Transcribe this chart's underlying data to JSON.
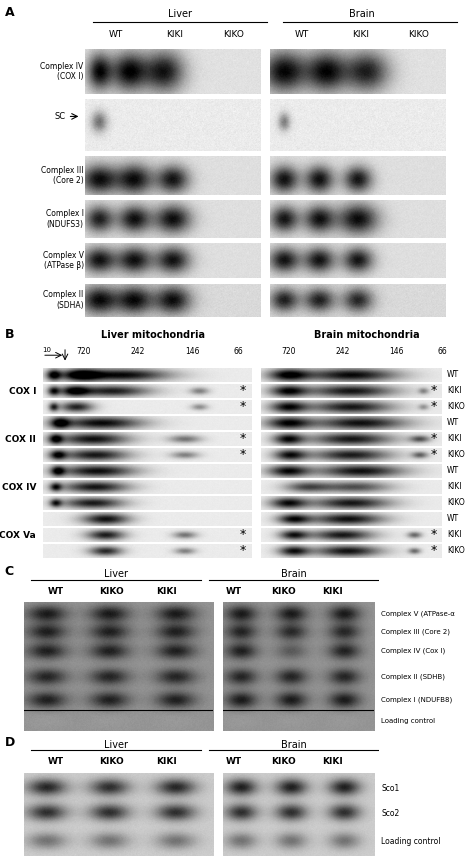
{
  "panel_labels": [
    "A",
    "B",
    "C",
    "D"
  ],
  "A_liver_label": "Liver",
  "A_brain_label": "Brain",
  "A_col_labels": [
    "WT",
    "KIKI",
    "KIKO"
  ],
  "A_row_labels": [
    "Complex IV\n(COX I)",
    "SC",
    "Complex III\n(Core 2)",
    "Complex I\n(NDUFS3)",
    "Complex V\n(ATPase β)",
    "Complex II\n(SDHA)"
  ],
  "B_liver_label": "Liver mitochondria",
  "B_brain_label": "Brain mitochondria",
  "B_mw_labels": [
    "720",
    "242",
    "146",
    "66"
  ],
  "B_protein_labels": [
    "COX I",
    "COX II",
    "COX IV",
    "COX Va"
  ],
  "B_row_labels": [
    "WT",
    "KIKI",
    "KIKO"
  ],
  "C_liver_label": "Liver",
  "C_brain_label": "Brain",
  "C_col_labels": [
    "WT",
    "KIKO",
    "KIKI"
  ],
  "C_band_labels": [
    "Complex V (ATPase-α",
    "Complex III (Core 2)",
    "Complex IV (Cox I)",
    "Complex II (SDHB)",
    "Complex I (NDUFB8)",
    "Loading control"
  ],
  "D_liver_label": "Liver",
  "D_brain_label": "Brain",
  "D_col_labels": [
    "WT",
    "KIKO",
    "KIKI"
  ],
  "D_band_labels": [
    "Sco1",
    "Sco2",
    "Loading control"
  ],
  "white": "#ffffff",
  "near_black": "#111111",
  "light_gray": "#e8e8e8",
  "med_gray": "#c8c8c8",
  "dark_gray": "#888888",
  "teal_bg": "#7a9e94",
  "blot_bg_light": "#d4d4d4",
  "blot_bg_white": "#f0f0f0"
}
